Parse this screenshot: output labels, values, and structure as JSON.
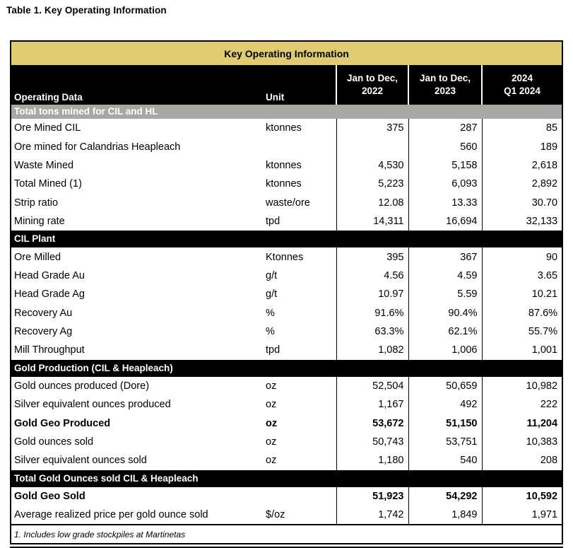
{
  "page_title": "Table 1. Key Operating Information",
  "table": {
    "title": "Key Operating Information",
    "columns": {
      "operating_data": "Operating Data",
      "unit": "Unit",
      "period1_line1": "Jan to Dec,",
      "period1_line2": "2022",
      "period2_line1": "Jan to Dec,",
      "period2_line2": "2023",
      "period3_line1": "2024",
      "period3_line2": "Q1 2024"
    },
    "sections": [
      {
        "header": "Total tons mined for CIL and HL",
        "header_style": "gray",
        "rows": [
          {
            "label": "Ore Mined CIL",
            "unit": "ktonnes",
            "values": [
              "375",
              "287",
              "85"
            ],
            "bold": false
          },
          {
            "label": "Ore mined for Calandrias Heapleach",
            "unit": "",
            "values": [
              "",
              "560",
              "189"
            ],
            "bold": false
          },
          {
            "label": "Waste Mined",
            "unit": "ktonnes",
            "values": [
              "4,530",
              "5,158",
              "2,618"
            ],
            "bold": false
          },
          {
            "label": "Total Mined (1)",
            "unit": "ktonnes",
            "values": [
              "5,223",
              "6,093",
              "2,892"
            ],
            "bold": false
          },
          {
            "label": "Strip ratio",
            "unit": "waste/ore",
            "values": [
              "12.08",
              "13.33",
              "30.70"
            ],
            "bold": false
          },
          {
            "label": "Mining rate",
            "unit": "tpd",
            "values": [
              "14,311",
              "16,694",
              "32,133"
            ],
            "bold": false
          }
        ]
      },
      {
        "header": "CIL Plant",
        "header_style": "black",
        "rows": [
          {
            "label": "Ore Milled",
            "unit": "Ktonnes",
            "values": [
              "395",
              "367",
              "90"
            ],
            "bold": false
          },
          {
            "label": "Head Grade Au",
            "unit": "g/t",
            "values": [
              "4.56",
              "4.59",
              "3.65"
            ],
            "bold": false
          },
          {
            "label": "Head Grade Ag",
            "unit": "g/t",
            "values": [
              "10.97",
              "5.59",
              "10.21"
            ],
            "bold": false
          },
          {
            "label": "Recovery Au",
            "unit": "%",
            "values": [
              "91.6%",
              "90.4%",
              "87.6%"
            ],
            "bold": false
          },
          {
            "label": "Recovery Ag",
            "unit": "%",
            "values": [
              "63.3%",
              "62.1%",
              "55.7%"
            ],
            "bold": false
          },
          {
            "label": "Mill Throughput",
            "unit": "tpd",
            "values": [
              "1,082",
              "1,006",
              "1,001"
            ],
            "bold": false
          }
        ]
      },
      {
        "header": "Gold Production (CIL & Heapleach)",
        "header_style": "black",
        "rows": [
          {
            "label": "Gold ounces produced (Dore)",
            "unit": "oz",
            "values": [
              "52,504",
              "50,659",
              "10,982"
            ],
            "bold": false
          },
          {
            "label": "Silver equivalent ounces produced",
            "unit": "oz",
            "values": [
              "1,167",
              "492",
              "222"
            ],
            "bold": false
          },
          {
            "label": "Gold Geo Produced",
            "unit": "oz",
            "values": [
              "53,672",
              "51,150",
              "11,204"
            ],
            "bold": true
          },
          {
            "label": "Gold ounces sold",
            "unit": "oz",
            "values": [
              "50,743",
              "53,751",
              "10,383"
            ],
            "bold": false
          },
          {
            "label": "Silver equivalent ounces sold",
            "unit": "oz",
            "values": [
              "1,180",
              "540",
              "208"
            ],
            "bold": false
          }
        ]
      },
      {
        "header": "Total Gold Ounces sold CIL & Heapleach",
        "header_style": "black",
        "rows": [
          {
            "label": "Gold Geo Sold",
            "unit": "",
            "values": [
              "51,923",
              "54,292",
              "10,592"
            ],
            "bold": true
          },
          {
            "label": "Average realized price per gold ounce sold",
            "unit": "$/oz",
            "values": [
              "1,742",
              "1,849",
              "1,971"
            ],
            "bold": false
          }
        ]
      }
    ],
    "footnote": "1. Includes low grade stockpiles at Martinetas",
    "colors": {
      "gold_header_bg": "#E0CB73",
      "gray_section_bg": "#A9A7A4",
      "black_section_bg": "#000000"
    }
  }
}
